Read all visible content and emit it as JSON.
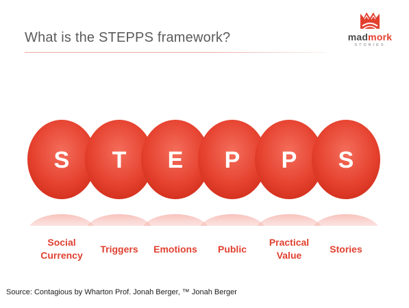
{
  "title": "What is the STEPPS framework?",
  "logo": {
    "word_a": "mad",
    "word_b": "mork",
    "sub": "STORIES",
    "color": "#e2402f"
  },
  "letters": [
    "S",
    "T",
    "E",
    "P",
    "P",
    "S"
  ],
  "labels": [
    {
      "line1": "Social",
      "line2": "Currency"
    },
    {
      "line1": "Triggers",
      "line2": ""
    },
    {
      "line1": "Emotions",
      "line2": ""
    },
    {
      "line1": "Public",
      "line2": ""
    },
    {
      "line1": "Practical",
      "line2": "Value"
    },
    {
      "line1": "Stories",
      "line2": ""
    }
  ],
  "source": "Source:  Contagious by Wharton Prof. Jonah Berger, ™ Jonah Berger",
  "colors": {
    "accent": "#e2402f",
    "circle_light": "#f26b5a",
    "circle_dark": "#d8321f"
  }
}
